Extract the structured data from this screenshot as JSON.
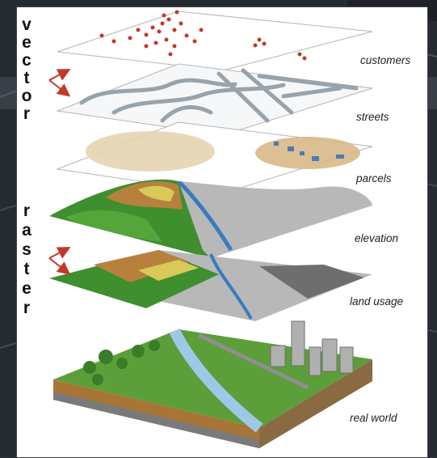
{
  "left_words": {
    "vector": [
      "v",
      "e",
      "c",
      "t",
      "o",
      "r"
    ],
    "raster": [
      "r",
      "a",
      "s",
      "t",
      "e",
      "r"
    ]
  },
  "layers": {
    "customers": "customers",
    "streets": "streets",
    "parcels": "parcels",
    "elevation": "elevation",
    "land_usage": "land usage",
    "real_world": "real world"
  },
  "colors": {
    "arrow": "#c0392b",
    "customer_dot": "#c0392b",
    "street": "#8e9aa3",
    "water": "#3a7bbf",
    "green": "#3f8f2f",
    "brown": "#b7813d",
    "gray": "#a9a9a9"
  }
}
